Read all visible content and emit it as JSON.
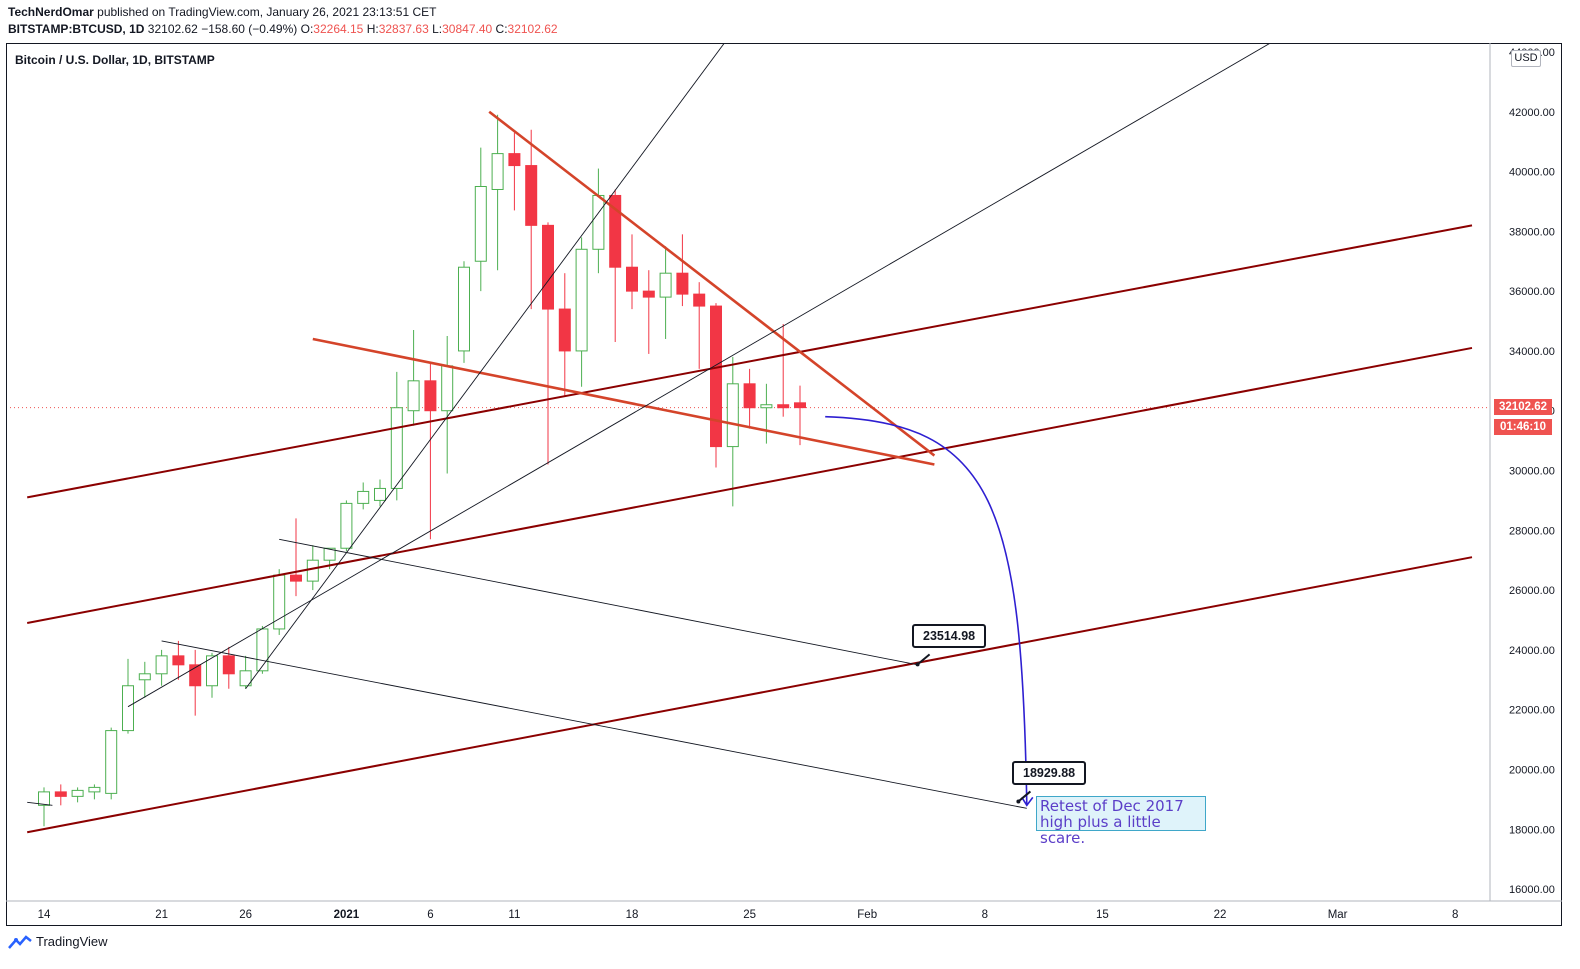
{
  "header": {
    "author": "TechNerdOmar",
    "published_text": "published on TradingView.com, January 26, 2021 23:13:51 CET",
    "symbol": "BITSTAMP:BTCUSD, 1D",
    "last": "32102.62",
    "change": "−158.60 (−0.49%)",
    "o_label": "O:",
    "o_value": "32264.15",
    "h_label": "H:",
    "h_value": "32837.63",
    "l_label": "L:",
    "l_value": "30847.40",
    "c_label": "C:",
    "c_value": "32102.62"
  },
  "chart_title": "Bitcoin / U.S. Dollar, 1D, BITSTAMP",
  "currency": "USD",
  "price_tag": "32102.62",
  "countdown_tag": "01:46:10",
  "callouts": [
    {
      "text": "23514.98"
    },
    {
      "text": "18929.88"
    }
  ],
  "note": {
    "line1": "Retest of Dec 2017",
    "line2": "high plus a little scare."
  },
  "footer": {
    "brand": "TradingView"
  },
  "colors": {
    "up": "#26a69a",
    "up_body": "#ffffff",
    "up_border": "#4caf50",
    "down": "#f23645",
    "trend": "#8b0000",
    "wedge": "#d4442a",
    "projection": "#2e1fd1"
  },
  "chart_data": {
    "type": "candlestick",
    "title": "Bitcoin / U.S. Dollar, 1D, BITSTAMP",
    "ylim": [
      15600,
      44300
    ],
    "y_ticks": [
      16000,
      18000,
      20000,
      22000,
      24000,
      26000,
      28000,
      30000,
      32000,
      34000,
      36000,
      38000,
      40000,
      42000,
      44000
    ],
    "x_ticks": [
      {
        "label": "14",
        "day": 0
      },
      {
        "label": "21",
        "day": 7
      },
      {
        "label": "26",
        "day": 12
      },
      {
        "label": "2021",
        "day": 18
      },
      {
        "label": "6",
        "day": 23
      },
      {
        "label": "11",
        "day": 28
      },
      {
        "label": "18",
        "day": 35
      },
      {
        "label": "25",
        "day": 42
      },
      {
        "label": "Feb",
        "day": 49
      },
      {
        "label": "8",
        "day": 56
      },
      {
        "label": "15",
        "day": 63
      },
      {
        "label": "22",
        "day": 70
      },
      {
        "label": "Mar",
        "day": 77
      },
      {
        "label": "8",
        "day": 84
      }
    ],
    "candles": [
      {
        "day": 0,
        "o": 18800,
        "h": 19400,
        "l": 18100,
        "c": 19250
      },
      {
        "day": 1,
        "o": 19250,
        "h": 19500,
        "l": 18800,
        "c": 19100
      },
      {
        "day": 2,
        "o": 19100,
        "h": 19400,
        "l": 18900,
        "c": 19300
      },
      {
        "day": 3,
        "o": 19250,
        "h": 19500,
        "l": 19000,
        "c": 19400
      },
      {
        "day": 4,
        "o": 19200,
        "h": 21400,
        "l": 19000,
        "c": 21300
      },
      {
        "day": 5,
        "o": 21300,
        "h": 23700,
        "l": 21200,
        "c": 22800
      },
      {
        "day": 6,
        "o": 23000,
        "h": 23600,
        "l": 22400,
        "c": 23200
      },
      {
        "day": 7,
        "o": 23200,
        "h": 24000,
        "l": 22800,
        "c": 23800
      },
      {
        "day": 8,
        "o": 23800,
        "h": 24300,
        "l": 23000,
        "c": 23500
      },
      {
        "day": 9,
        "o": 23500,
        "h": 24000,
        "l": 21800,
        "c": 22800
      },
      {
        "day": 10,
        "o": 22800,
        "h": 23900,
        "l": 22400,
        "c": 23800
      },
      {
        "day": 11,
        "o": 23800,
        "h": 24100,
        "l": 22700,
        "c": 23200
      },
      {
        "day": 12,
        "o": 22800,
        "h": 23800,
        "l": 22700,
        "c": 23300
      },
      {
        "day": 13,
        "o": 23300,
        "h": 24800,
        "l": 23200,
        "c": 24700
      },
      {
        "day": 14,
        "o": 24700,
        "h": 26700,
        "l": 24500,
        "c": 26500
      },
      {
        "day": 15,
        "o": 26500,
        "h": 28400,
        "l": 25800,
        "c": 26300
      },
      {
        "day": 16,
        "o": 26300,
        "h": 27500,
        "l": 26000,
        "c": 27000
      },
      {
        "day": 17,
        "o": 27000,
        "h": 27400,
        "l": 26700,
        "c": 27400
      },
      {
        "day": 18,
        "o": 27400,
        "h": 29000,
        "l": 27300,
        "c": 28900
      },
      {
        "day": 19,
        "o": 28900,
        "h": 29600,
        "l": 28700,
        "c": 29300
      },
      {
        "day": 20,
        "o": 29000,
        "h": 29700,
        "l": 28800,
        "c": 29400
      },
      {
        "day": 21,
        "o": 29400,
        "h": 33300,
        "l": 29000,
        "c": 32100
      },
      {
        "day": 22,
        "o": 32000,
        "h": 34700,
        "l": 31500,
        "c": 33000
      },
      {
        "day": 23,
        "o": 33000,
        "h": 33600,
        "l": 27700,
        "c": 32000
      },
      {
        "day": 24,
        "o": 32000,
        "h": 34500,
        "l": 29900,
        "c": 33500
      },
      {
        "day": 25,
        "o": 34000,
        "h": 37000,
        "l": 33600,
        "c": 36800
      },
      {
        "day": 26,
        "o": 37000,
        "h": 40800,
        "l": 36000,
        "c": 39500
      },
      {
        "day": 27,
        "o": 39400,
        "h": 41900,
        "l": 36700,
        "c": 40600
      },
      {
        "day": 28,
        "o": 40600,
        "h": 41300,
        "l": 38700,
        "c": 40200
      },
      {
        "day": 29,
        "o": 40200,
        "h": 41400,
        "l": 35400,
        "c": 38200
      },
      {
        "day": 30,
        "o": 38200,
        "h": 38300,
        "l": 30200,
        "c": 35400
      },
      {
        "day": 31,
        "o": 35400,
        "h": 36600,
        "l": 32500,
        "c": 34000
      },
      {
        "day": 32,
        "o": 34000,
        "h": 37800,
        "l": 32800,
        "c": 37400
      },
      {
        "day": 33,
        "o": 37400,
        "h": 40100,
        "l": 36600,
        "c": 39200
      },
      {
        "day": 34,
        "o": 39200,
        "h": 39400,
        "l": 34300,
        "c": 36800
      },
      {
        "day": 35,
        "o": 36800,
        "h": 37900,
        "l": 35400,
        "c": 36000
      },
      {
        "day": 36,
        "o": 36000,
        "h": 36700,
        "l": 33900,
        "c": 35800
      },
      {
        "day": 37,
        "o": 35800,
        "h": 37500,
        "l": 34400,
        "c": 36600
      },
      {
        "day": 38,
        "o": 36600,
        "h": 37900,
        "l": 35500,
        "c": 35900
      },
      {
        "day": 39,
        "o": 35900,
        "h": 36300,
        "l": 33400,
        "c": 35500
      },
      {
        "day": 40,
        "o": 35500,
        "h": 35600,
        "l": 30100,
        "c": 30800
      },
      {
        "day": 41,
        "o": 30800,
        "h": 33800,
        "l": 28800,
        "c": 32900
      },
      {
        "day": 42,
        "o": 32900,
        "h": 33400,
        "l": 31400,
        "c": 32100
      },
      {
        "day": 43,
        "o": 32100,
        "h": 32900,
        "l": 30900,
        "c": 32200
      },
      {
        "day": 44,
        "o": 32200,
        "h": 34900,
        "l": 31800,
        "c": 32100
      },
      {
        "day": 45,
        "o": 32264,
        "h": 32838,
        "l": 30847,
        "c": 32103
      }
    ],
    "lines": [
      {
        "name": "channel-upper",
        "style": "trend",
        "from": [
          -1,
          29100
        ],
        "to": [
          85,
          38200
        ]
      },
      {
        "name": "channel-middle",
        "style": "trend",
        "from": [
          -1,
          24900
        ],
        "to": [
          85,
          34100
        ]
      },
      {
        "name": "channel-lower",
        "style": "trend",
        "from": [
          -1,
          17900
        ],
        "to": [
          85,
          27100
        ]
      },
      {
        "name": "wedge-top",
        "style": "wedge",
        "from": [
          26.5,
          42000
        ],
        "to": [
          53,
          30500
        ]
      },
      {
        "name": "wedge-bottom",
        "style": "wedge",
        "from": [
          16,
          34400
        ],
        "to": [
          53,
          30200
        ]
      },
      {
        "name": "support-steep",
        "style": "thin",
        "from": [
          12,
          22700
        ],
        "to": [
          40.5,
          44300
        ]
      },
      {
        "name": "support-shallow",
        "style": "thin",
        "from": [
          5,
          22100
        ],
        "to": [
          73,
          44300
        ]
      },
      {
        "name": "descending-1",
        "style": "thin",
        "from": [
          14,
          27700
        ],
        "to": [
          52,
          23500
        ]
      },
      {
        "name": "descending-2",
        "style": "thin",
        "from": [
          7,
          24300
        ],
        "to": [
          58.5,
          18700
        ]
      },
      {
        "name": "short-left",
        "style": "thin",
        "from": [
          -1,
          18900
        ],
        "to": [
          0.5,
          18800
        ]
      }
    ],
    "projection": {
      "from": [
        46.5,
        31800
      ],
      "to": [
        58.5,
        18800
      ]
    },
    "callout_points": [
      {
        "value": 23514.98,
        "day": 52
      },
      {
        "value": 18929.88,
        "day": 58
      }
    ],
    "last_price": 32102.62
  }
}
